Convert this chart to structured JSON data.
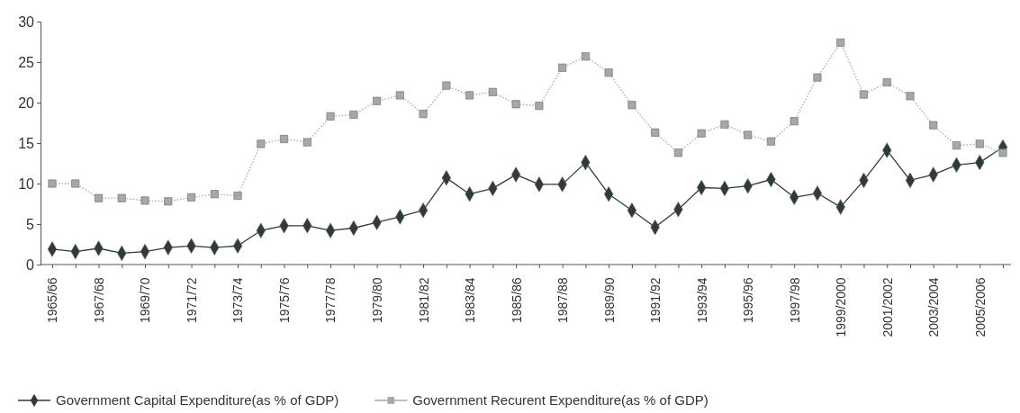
{
  "chart_data": {
    "type": "line",
    "categories": [
      "1965/66",
      null,
      "1967/68",
      null,
      "1969/70",
      null,
      "1971/72",
      null,
      "1973/74",
      null,
      "1975/76",
      null,
      "1977/78",
      null,
      "1979/80",
      null,
      "1981/82",
      null,
      "1983/84",
      null,
      "1985/86",
      null,
      "1987/88",
      null,
      "1989/90",
      null,
      "1991/92",
      null,
      "1993/94",
      null,
      "1995/96",
      null,
      "1997/98",
      null,
      "1999/2000",
      null,
      "2001/2002",
      null,
      "2003/2004",
      null,
      "2005/2006",
      null
    ],
    "ylim": [
      0,
      30
    ],
    "yticks": [
      0,
      5,
      10,
      15,
      20,
      25,
      30
    ],
    "grid": false,
    "legend": "bottom",
    "series": [
      {
        "name": "Government Capital Expenditure(as % of GDP)",
        "color": "#2f3b3b",
        "marker": "diamond",
        "line_style": "solid",
        "values": [
          1.9,
          1.6,
          2.0,
          1.4,
          1.6,
          2.1,
          2.3,
          2.1,
          2.3,
          4.2,
          4.8,
          4.8,
          4.2,
          4.5,
          5.2,
          5.9,
          6.7,
          10.7,
          8.7,
          9.4,
          11.1,
          9.9,
          9.9,
          12.6,
          8.7,
          6.7,
          4.6,
          6.8,
          9.5,
          9.4,
          9.7,
          10.5,
          8.3,
          8.8,
          7.1,
          10.4,
          14.1,
          10.4,
          11.1,
          12.3,
          12.6,
          14.5
        ]
      },
      {
        "name": "Government Recurent Expenditure(as % of GDP)",
        "color": "#a3a9a9",
        "marker": "square",
        "line_style": "dotted",
        "values": [
          10,
          10,
          8.2,
          8.2,
          7.9,
          7.8,
          8.3,
          8.7,
          8.5,
          14.9,
          15.5,
          15.1,
          18.3,
          18.5,
          20.2,
          20.9,
          18.6,
          22.1,
          20.9,
          21.3,
          19.8,
          19.6,
          24.3,
          25.7,
          23.7,
          19.7,
          16.3,
          13.8,
          16.2,
          17.3,
          16.0,
          15.2,
          17.7,
          23.1,
          27.4,
          21.0,
          22.5,
          20.8,
          17.2,
          14.7,
          14.9,
          13.8
        ]
      }
    ]
  }
}
